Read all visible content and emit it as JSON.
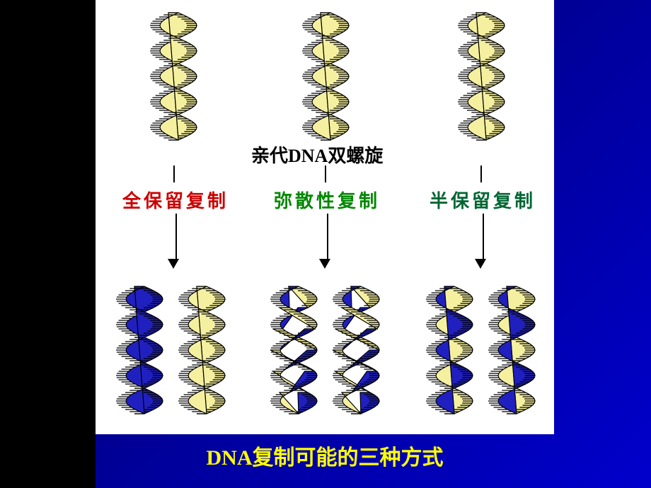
{
  "diagram": {
    "background_gradient": [
      "#000033",
      "#000080",
      "#0000cc"
    ],
    "panel_bg": "#ffffff",
    "stroke_color": "#000000",
    "old_strand_color": "#f5f0a0",
    "new_strand_color": "#2020c0",
    "parent_title": "亲代DNA双螺旋",
    "columns": [
      {
        "label": "全保留复制",
        "color": "#cc0000"
      },
      {
        "label": "弥散性复制",
        "color": "#008800"
      },
      {
        "label": "半保留复制",
        "color": "#006633"
      }
    ],
    "caption": "DNA复制可能的三种方式",
    "caption_color": "#ffff00",
    "title_fontsize": 26,
    "label_fontsize": 26,
    "caption_fontsize": 30
  }
}
